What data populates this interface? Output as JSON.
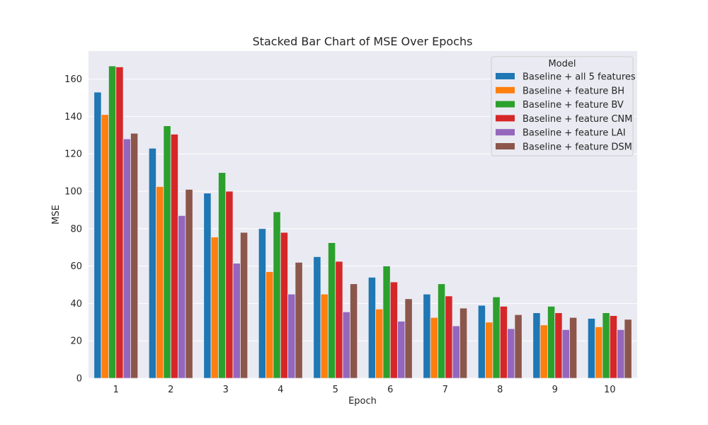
{
  "chart_data": {
    "type": "bar",
    "title": "Stacked Bar Chart of MSE Over Epochs",
    "xlabel": "Epoch",
    "ylabel": "MSE",
    "ylim": [
      0,
      175
    ],
    "yticks": [
      0,
      20,
      40,
      60,
      80,
      100,
      120,
      140,
      160
    ],
    "grid": true,
    "legend_title": "Model",
    "legend_position": "top-right",
    "categories": [
      "1",
      "2",
      "3",
      "4",
      "5",
      "6",
      "7",
      "8",
      "9",
      "10"
    ],
    "series": [
      {
        "name": "Baseline + all 5 features",
        "color": "#1f77b4",
        "values": [
          153,
          123,
          99,
          80,
          65,
          54,
          45,
          39,
          35,
          32
        ]
      },
      {
        "name": "Baseline + feature BH",
        "color": "#ff7f0e",
        "values": [
          141,
          102.5,
          75.5,
          57,
          45,
          37,
          32.5,
          30,
          28.5,
          27.5
        ]
      },
      {
        "name": "Baseline + feature BV",
        "color": "#2ca02c",
        "values": [
          167,
          135,
          110,
          89,
          72.5,
          60,
          50.5,
          43.5,
          38.5,
          35
        ]
      },
      {
        "name": "Baseline + feature CNM",
        "color": "#d62728",
        "values": [
          166.5,
          130.5,
          100,
          78,
          62.5,
          51.5,
          44,
          38.5,
          35,
          33.5
        ]
      },
      {
        "name": "Baseline + feature LAI",
        "color": "#9467bd",
        "values": [
          128,
          87,
          61.5,
          45,
          35.5,
          30.5,
          28,
          26.5,
          26,
          26
        ]
      },
      {
        "name": "Baseline + feature DSM",
        "color": "#8c564b",
        "values": [
          131,
          101,
          78,
          62,
          50.5,
          42.5,
          37.5,
          34,
          32.5,
          31.5
        ]
      }
    ]
  }
}
